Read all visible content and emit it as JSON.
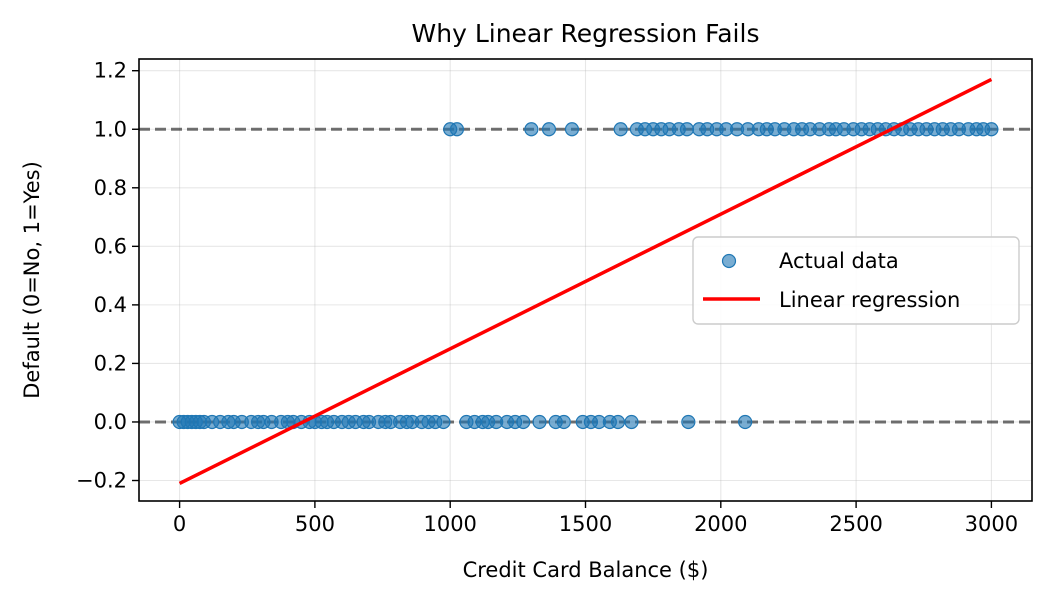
{
  "chart_data": {
    "type": "scatter",
    "title": "Why Linear Regression Fails",
    "xlabel": "Credit Card Balance ($)",
    "ylabel": "Default (0=No, 1=Yes)",
    "xlim": [
      -150,
      3150
    ],
    "ylim": [
      -0.27,
      1.24
    ],
    "xticks": [
      0,
      500,
      1000,
      1500,
      2000,
      2500,
      3000
    ],
    "xtick_labels": [
      "0",
      "500",
      "1000",
      "1500",
      "2000",
      "2500",
      "3000"
    ],
    "yticks": [
      -0.2,
      0.0,
      0.2,
      0.4,
      0.6,
      0.8,
      1.0,
      1.2
    ],
    "ytick_labels": [
      "−0.2",
      "0.0",
      "0.2",
      "0.4",
      "0.6",
      "0.8",
      "1.0",
      "1.2"
    ],
    "grid": true,
    "reference_lines": [
      0,
      1
    ],
    "legend_position": "center-right",
    "series": [
      {
        "name": "Actual data",
        "kind": "scatter",
        "color": "#1f77b4",
        "points_y0": [
          0,
          15,
          30,
          45,
          60,
          75,
          90,
          120,
          150,
          180,
          200,
          230,
          265,
          290,
          310,
          340,
          375,
          400,
          420,
          450,
          480,
          500,
          525,
          545,
          570,
          600,
          625,
          650,
          680,
          700,
          735,
          760,
          780,
          815,
          840,
          860,
          895,
          920,
          945,
          975,
          1060,
          1090,
          1120,
          1140,
          1170,
          1210,
          1240,
          1270,
          1330,
          1390,
          1420,
          1490,
          1520,
          1550,
          1590,
          1620,
          1670,
          1880,
          2090
        ],
        "points_y1": [
          1000,
          1025,
          1300,
          1365,
          1450,
          1630,
          1690,
          1720,
          1750,
          1780,
          1810,
          1845,
          1875,
          1920,
          1950,
          1985,
          2020,
          2060,
          2100,
          2140,
          2170,
          2200,
          2235,
          2270,
          2300,
          2330,
          2365,
          2400,
          2425,
          2455,
          2490,
          2520,
          2550,
          2580,
          2610,
          2640,
          2670,
          2700,
          2730,
          2760,
          2790,
          2820,
          2850,
          2880,
          2915,
          2945,
          2970,
          3000
        ]
      },
      {
        "name": "Linear regression",
        "kind": "line",
        "color": "#ff0000",
        "x": [
          0,
          3000
        ],
        "y": [
          -0.21,
          1.17
        ]
      }
    ]
  }
}
